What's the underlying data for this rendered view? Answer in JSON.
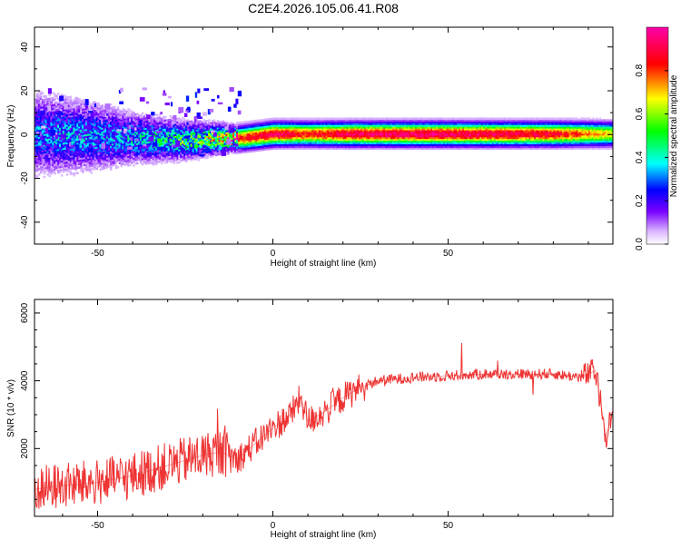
{
  "figure_title": "C2E4.2026.105.06.41.R08",
  "chart_data": [
    {
      "type": "heatmap",
      "xlabel": "Height of straight line (km)",
      "ylabel": "Frequency (Hz)",
      "xlim": [
        -68,
        97
      ],
      "ylim": [
        -50,
        49
      ],
      "x_ticks": [
        -50,
        0,
        50
      ],
      "y_ticks": [
        -40,
        -20,
        0,
        20,
        40
      ],
      "grid": false,
      "colorbar": {
        "label": "Normalized spectral amplitude",
        "range": [
          0,
          1
        ],
        "ticks": [
          0.0,
          0.2,
          0.4,
          0.6,
          0.8
        ],
        "colors": [
          "#ffffff",
          "#d9b3ff",
          "#7a00ff",
          "#0000ff",
          "#00ffff",
          "#00ff00",
          "#ffff00",
          "#ff0000",
          "#ff00aa"
        ]
      },
      "intensity_profile": [
        {
          "x": -68,
          "amp": 0.3,
          "width": 10
        },
        {
          "x": -60,
          "amp": 0.35,
          "width": 9
        },
        {
          "x": -50,
          "amp": 0.32,
          "width": 8
        },
        {
          "x": -40,
          "amp": 0.38,
          "width": 6
        },
        {
          "x": -30,
          "amp": 0.45,
          "width": 5
        },
        {
          "x": -20,
          "amp": 0.55,
          "width": 4
        },
        {
          "x": -12,
          "amp": 0.85,
          "width": 3
        },
        {
          "x": 0,
          "amp": 0.95,
          "width": 3
        },
        {
          "x": 10,
          "amp": 0.85,
          "width": 3
        },
        {
          "x": 20,
          "amp": 0.95,
          "width": 3
        },
        {
          "x": 40,
          "amp": 0.98,
          "width": 3
        },
        {
          "x": 60,
          "amp": 0.95,
          "width": 3
        },
        {
          "x": 80,
          "amp": 0.9,
          "width": 3
        },
        {
          "x": 97,
          "amp": 0.7,
          "width": 3
        }
      ],
      "center_frequency": [
        {
          "x": -68,
          "y": 0
        },
        {
          "x": -40,
          "y": -2
        },
        {
          "x": -25,
          "y": -3
        },
        {
          "x": -15,
          "y": -2
        },
        {
          "x": -10,
          "y": -2
        },
        {
          "x": 0,
          "y": 0
        },
        {
          "x": 97,
          "y": 0
        }
      ]
    },
    {
      "type": "line",
      "xlabel": "Height of straight line (km)",
      "ylabel": "SNR (10 * v/v)",
      "xlim": [
        -68,
        97
      ],
      "ylim": [
        0,
        6400
      ],
      "x_ticks": [
        -50,
        0,
        50
      ],
      "y_ticks": [
        2000,
        4000,
        6000
      ],
      "grid": false,
      "series": [
        {
          "color": "#ee3333",
          "x": [
            -68,
            -60,
            -50,
            -40,
            -30,
            -20,
            -15,
            -10,
            0,
            5,
            8,
            10,
            15,
            20,
            25,
            30,
            40,
            50,
            60,
            70,
            80,
            88,
            92,
            95,
            97
          ],
          "y": [
            800,
            900,
            1000,
            1200,
            1500,
            1800,
            1900,
            1700,
            2600,
            3000,
            3500,
            2800,
            3100,
            3500,
            3800,
            4000,
            4100,
            4150,
            4200,
            4200,
            4200,
            4100,
            4300,
            2400,
            3000
          ]
        }
      ]
    }
  ]
}
